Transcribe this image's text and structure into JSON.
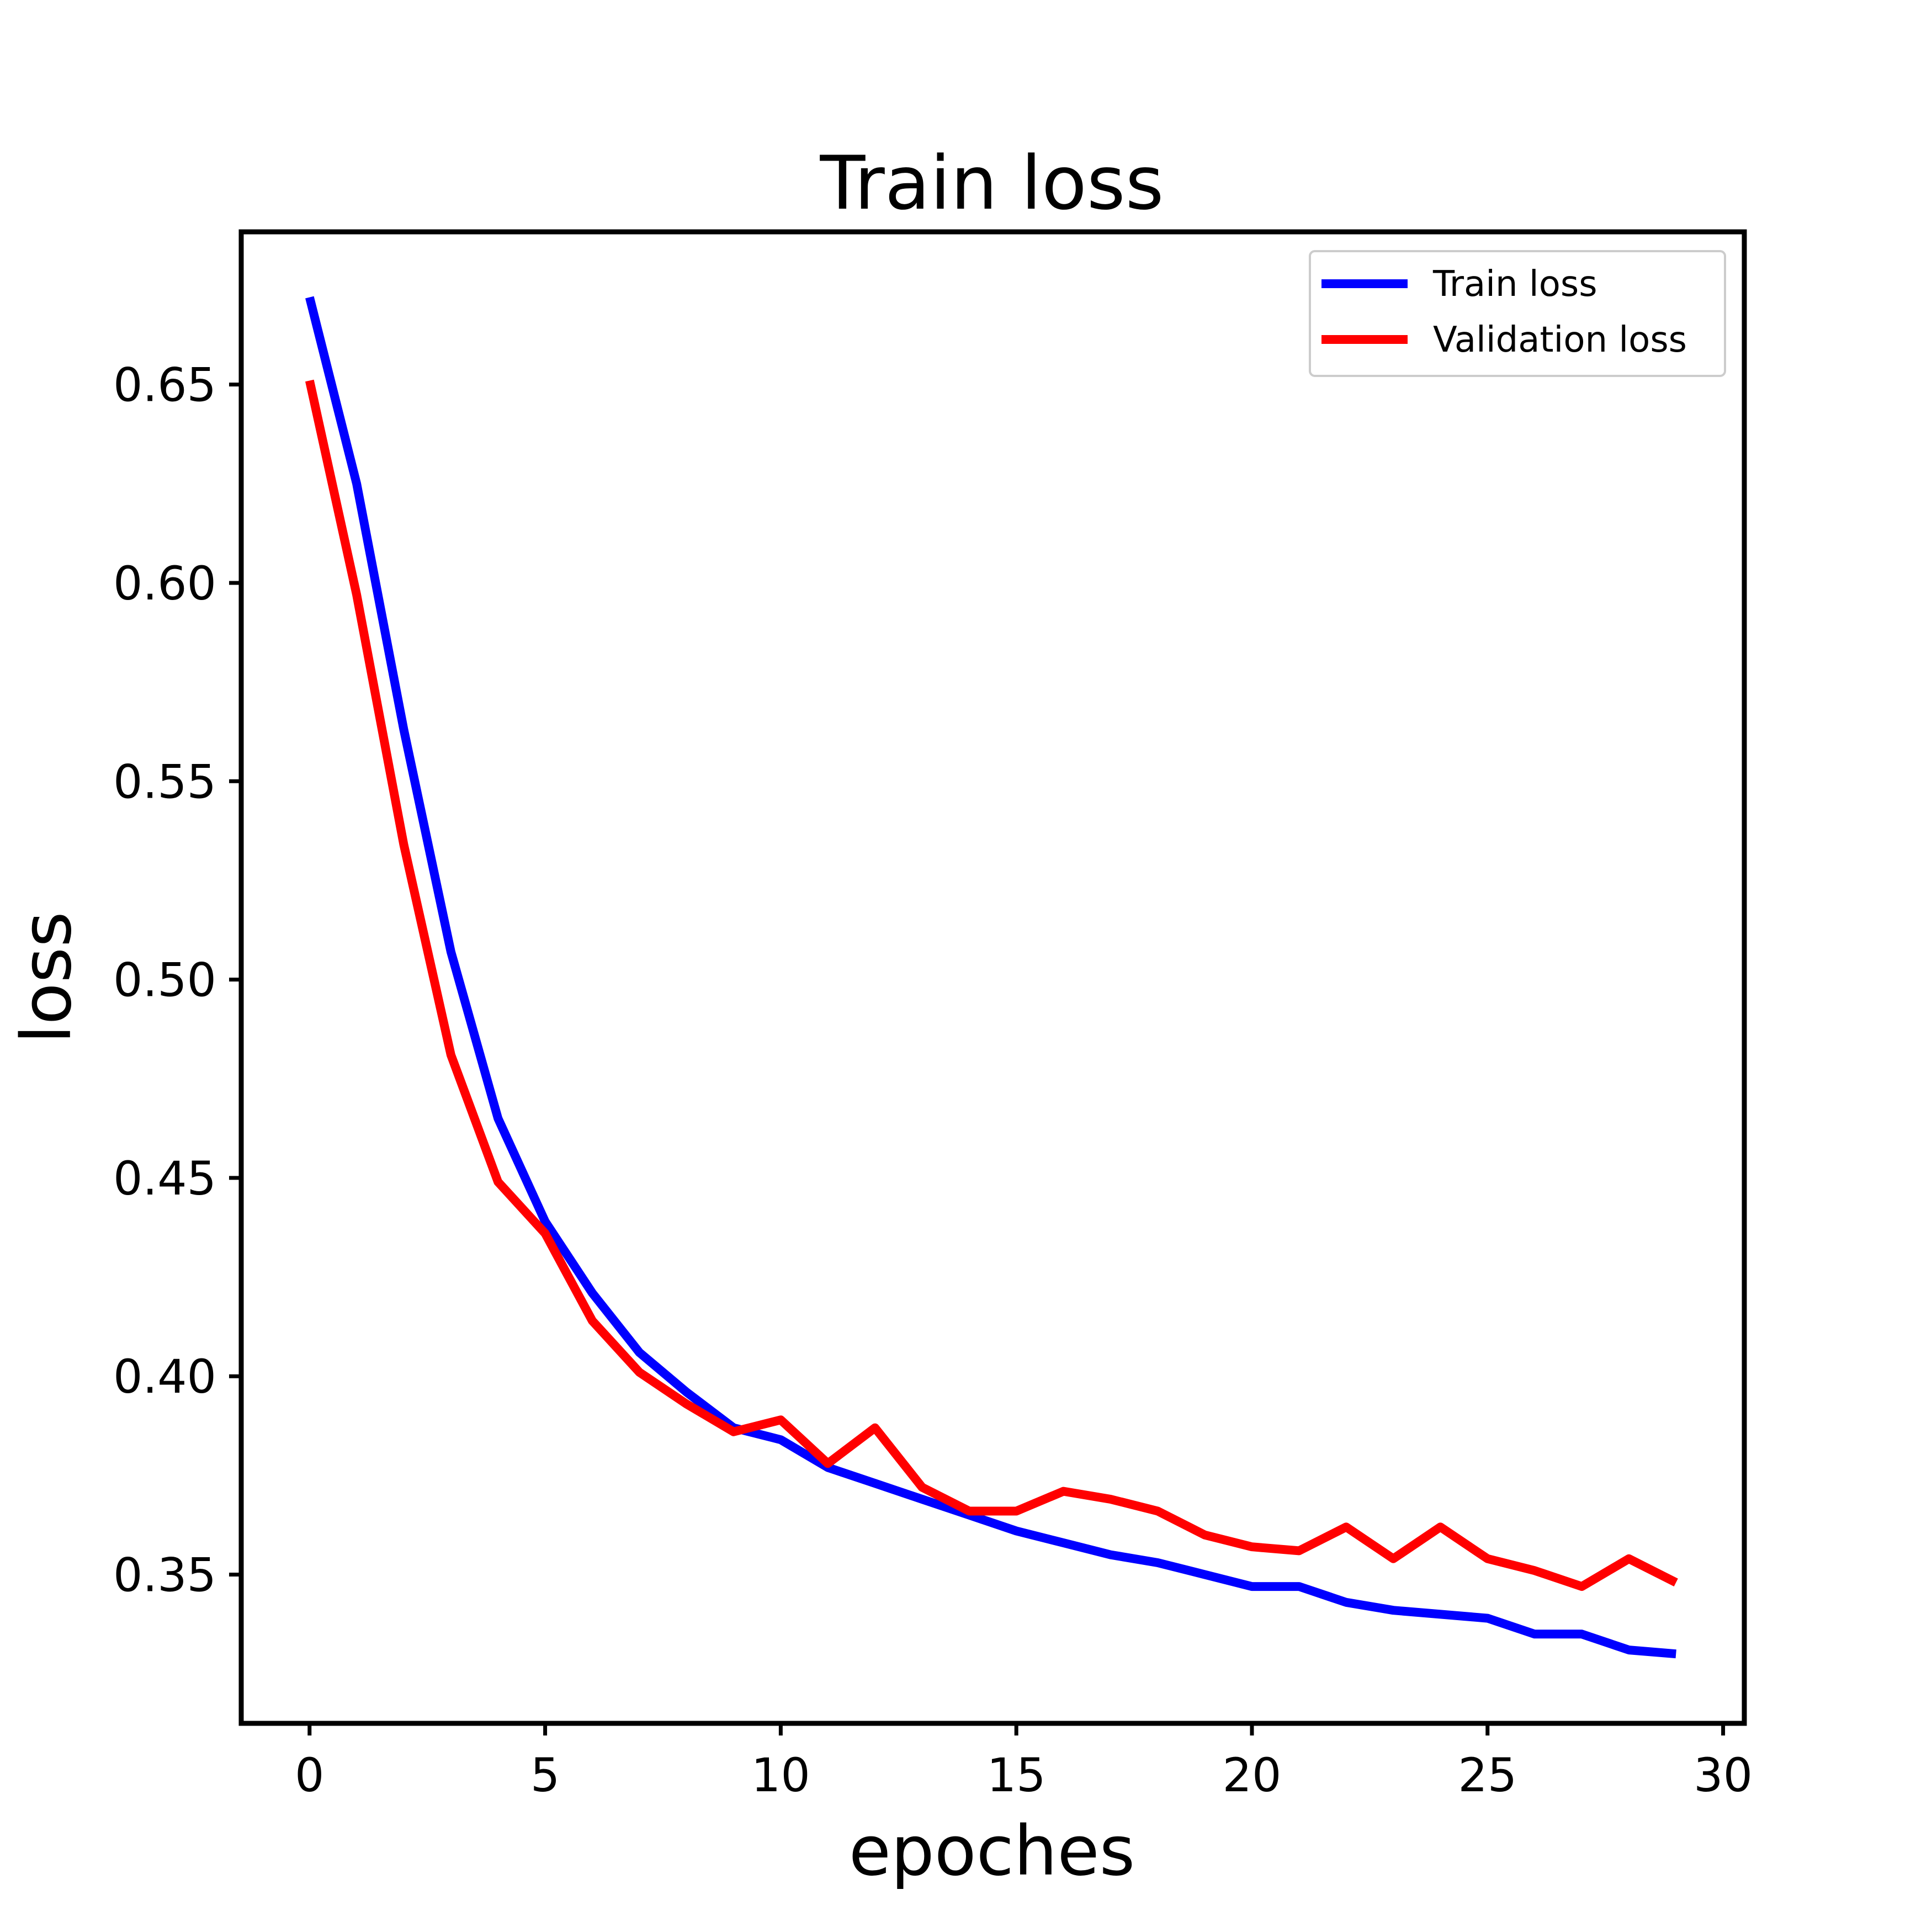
{
  "chart_data": {
    "type": "line",
    "title": "Train loss",
    "xlabel": "epoches",
    "ylabel": "loss",
    "xlim": [
      -1.45,
      30.45
    ],
    "ylim": [
      0.3125,
      0.6885
    ],
    "xticks": [
      0,
      5,
      10,
      15,
      20,
      25,
      30
    ],
    "xtick_labels": [
      "0",
      "5",
      "10",
      "15",
      "20",
      "25",
      "30"
    ],
    "yticks": [
      0.35,
      0.4,
      0.45,
      0.5,
      0.55,
      0.6,
      0.65
    ],
    "ytick_labels": [
      "0.35",
      "0.40",
      "0.45",
      "0.50",
      "0.55",
      "0.60",
      "0.65"
    ],
    "grid": false,
    "legend_position": "top-right",
    "x": [
      0,
      1,
      2,
      3,
      4,
      5,
      6,
      7,
      8,
      9,
      10,
      11,
      12,
      13,
      14,
      15,
      16,
      17,
      18,
      19,
      20,
      21,
      22,
      23,
      24,
      25,
      26,
      27,
      28,
      29
    ],
    "series": [
      {
        "name": "Train loss",
        "color": "#0000ff",
        "values": [
          0.672,
          0.625,
          0.563,
          0.507,
          0.465,
          0.439,
          0.421,
          0.406,
          0.396,
          0.387,
          0.384,
          0.377,
          0.373,
          0.369,
          0.365,
          0.361,
          0.358,
          0.355,
          0.353,
          0.35,
          0.347,
          0.347,
          0.343,
          0.341,
          0.34,
          0.339,
          0.335,
          0.335,
          0.331,
          0.33
        ]
      },
      {
        "name": "Validation loss",
        "color": "#ff0000",
        "values": [
          0.651,
          0.597,
          0.534,
          0.481,
          0.449,
          0.436,
          0.414,
          0.401,
          0.393,
          0.386,
          0.389,
          0.378,
          0.387,
          0.372,
          0.366,
          0.366,
          0.371,
          0.369,
          0.366,
          0.36,
          0.357,
          0.356,
          0.362,
          0.354,
          0.362,
          0.354,
          0.351,
          0.347,
          0.354,
          0.348
        ]
      }
    ]
  }
}
